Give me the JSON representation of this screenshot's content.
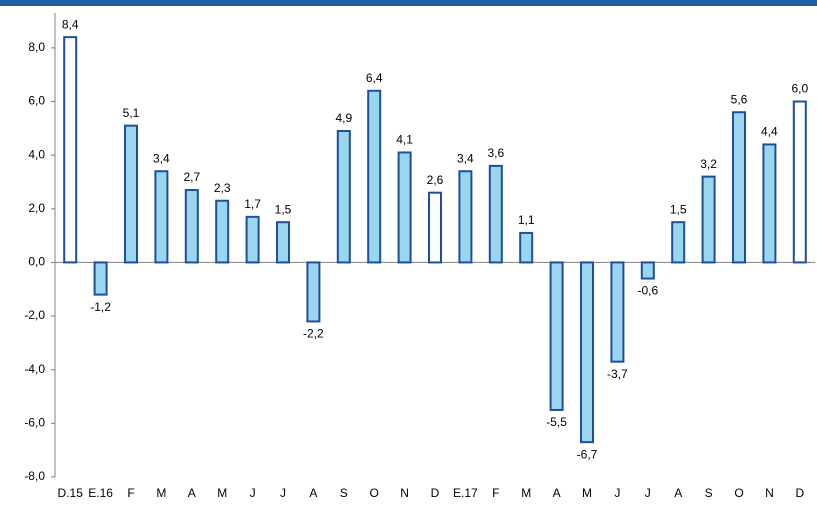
{
  "chart_data": {
    "type": "bar",
    "categories": [
      "D.15",
      "E.16",
      "F",
      "M",
      "A",
      "M",
      "J",
      "J",
      "A",
      "S",
      "O",
      "N",
      "D",
      "E.17",
      "F",
      "M",
      "A",
      "M",
      "J",
      "J",
      "A",
      "S",
      "O",
      "N",
      "D"
    ],
    "values": [
      8.4,
      -1.2,
      5.1,
      3.4,
      2.7,
      2.3,
      1.7,
      1.5,
      -2.2,
      4.9,
      6.4,
      4.1,
      2.6,
      3.4,
      3.6,
      1.1,
      -5.5,
      -6.7,
      -3.7,
      -0.6,
      1.5,
      3.2,
      5.6,
      4.4,
      6.0
    ],
    "value_labels": [
      "8,4",
      "-1,2",
      "5,1",
      "3,4",
      "2,7",
      "2,3",
      "1,7",
      "1,5",
      "-2,2",
      "4,9",
      "6,4",
      "4,1",
      "2,6",
      "3,4",
      "3,6",
      "1,1",
      "-5,5",
      "-6,7",
      "-3,7",
      "-0,6",
      "1,5",
      "3,2",
      "5,6",
      "4,4",
      "6,0"
    ],
    "colors": [
      "#ffffff",
      "#9ad6ee",
      "#9ad6ee",
      "#9ad6ee",
      "#9ad6ee",
      "#9ad6ee",
      "#9ad6ee",
      "#9ad6ee",
      "#9ad6ee",
      "#9ad6ee",
      "#9ad6ee",
      "#9ad6ee",
      "#ffffff",
      "#9ad6ee",
      "#9ad6ee",
      "#9ad6ee",
      "#9ad6ee",
      "#9ad6ee",
      "#9ad6ee",
      "#9ad6ee",
      "#9ad6ee",
      "#9ad6ee",
      "#9ad6ee",
      "#9ad6ee",
      "#ffffff"
    ],
    "edge_color": "#1f4e9c",
    "ylim": [
      -8,
      9.3
    ],
    "yticks": [
      {
        "value": -8,
        "label": "-8,0"
      },
      {
        "value": -6,
        "label": "-6,0"
      },
      {
        "value": -4,
        "label": "-4,0"
      },
      {
        "value": -2,
        "label": "-2,0"
      },
      {
        "value": 0,
        "label": "0,0"
      },
      {
        "value": 2,
        "label": "2,0"
      },
      {
        "value": 4,
        "label": "4,0"
      },
      {
        "value": 6,
        "label": "6,0"
      },
      {
        "value": 8,
        "label": "8,0"
      }
    ],
    "grid": false
  }
}
